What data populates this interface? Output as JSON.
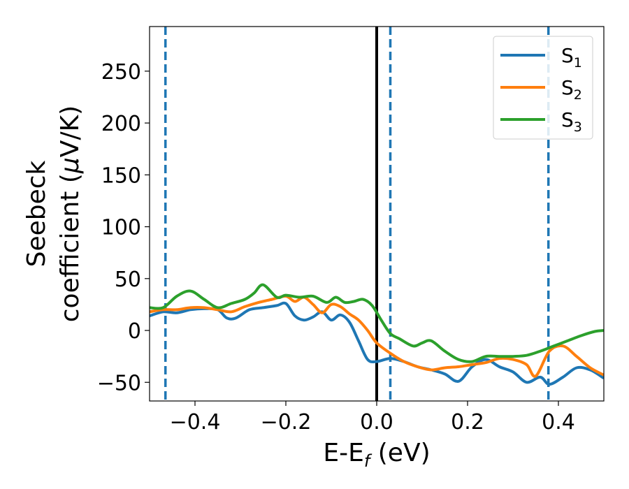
{
  "chart_data": {
    "type": "line",
    "xlabel": {
      "base": "E-E",
      "sub": "f",
      "tail": " (eV)"
    },
    "ylabel": {
      "line1": "Seebeck",
      "line2_pre": "coefficient  (",
      "line2_mu": "μ",
      "line2_post": "V/K)"
    },
    "xlim": [
      -0.5,
      0.5
    ],
    "ylim": [
      -68,
      293
    ],
    "x_ticks": [
      -0.4,
      -0.2,
      0.0,
      0.2,
      0.4
    ],
    "x_tick_labels": [
      "−0.4",
      "−0.2",
      "0.0",
      "0.2",
      "0.4"
    ],
    "y_ticks": [
      -50,
      0,
      50,
      100,
      150,
      200,
      250
    ],
    "y_tick_labels": [
      "−50",
      "0",
      "50",
      "100",
      "150",
      "200",
      "250"
    ],
    "grid": false,
    "legend_position": "top-right",
    "reference_lines": [
      {
        "x": -0.465,
        "style": "dashed",
        "color": "#1f77b4"
      },
      {
        "x": 0.0,
        "style": "solid",
        "color": "#000000"
      },
      {
        "x": 0.03,
        "style": "dashed",
        "color": "#1f77b4"
      },
      {
        "x": 0.378,
        "style": "dashed",
        "color": "#1f77b4"
      }
    ],
    "series": [
      {
        "name": "S",
        "sub": "1",
        "color": "#1f77b4",
        "x": [
          -0.5,
          -0.47,
          -0.44,
          -0.41,
          -0.38,
          -0.35,
          -0.33,
          -0.31,
          -0.28,
          -0.25,
          -0.22,
          -0.2,
          -0.18,
          -0.16,
          -0.14,
          -0.12,
          -0.1,
          -0.08,
          -0.06,
          -0.04,
          -0.02,
          0.0,
          0.03,
          0.06,
          0.09,
          0.12,
          0.15,
          0.18,
          0.21,
          0.24,
          0.27,
          0.3,
          0.33,
          0.36,
          0.38,
          0.41,
          0.44,
          0.47,
          0.5
        ],
        "y": [
          14,
          18,
          17,
          20,
          21,
          20,
          12,
          12,
          20,
          22,
          24,
          26,
          14,
          10,
          13,
          18,
          10,
          15,
          8,
          -10,
          -28,
          -30,
          -27,
          -30,
          -35,
          -38,
          -42,
          -49,
          -35,
          -28,
          -35,
          -40,
          -50,
          -45,
          -52,
          -45,
          -36,
          -38,
          -46
        ]
      },
      {
        "name": "S",
        "sub": "2",
        "color": "#ff7f0e",
        "x": [
          -0.5,
          -0.47,
          -0.44,
          -0.41,
          -0.38,
          -0.35,
          -0.32,
          -0.29,
          -0.26,
          -0.23,
          -0.2,
          -0.18,
          -0.16,
          -0.14,
          -0.12,
          -0.1,
          -0.08,
          -0.06,
          -0.04,
          -0.02,
          0.0,
          0.03,
          0.06,
          0.09,
          0.12,
          0.15,
          0.18,
          0.21,
          0.24,
          0.27,
          0.3,
          0.33,
          0.35,
          0.38,
          0.41,
          0.44,
          0.47,
          0.5
        ],
        "y": [
          18,
          20,
          20,
          22,
          22,
          20,
          18,
          23,
          27,
          30,
          33,
          28,
          32,
          25,
          17,
          25,
          23,
          16,
          10,
          0,
          -12,
          -22,
          -30,
          -35,
          -38,
          -36,
          -35,
          -33,
          -31,
          -27,
          -28,
          -33,
          -44,
          -20,
          -15,
          -25,
          -36,
          -43
        ]
      },
      {
        "name": "S",
        "sub": "3",
        "color": "#2ca02c",
        "x": [
          -0.5,
          -0.47,
          -0.44,
          -0.41,
          -0.38,
          -0.35,
          -0.32,
          -0.29,
          -0.27,
          -0.25,
          -0.22,
          -0.2,
          -0.17,
          -0.14,
          -0.11,
          -0.09,
          -0.07,
          -0.05,
          -0.03,
          -0.01,
          0.01,
          0.03,
          0.05,
          0.08,
          0.1,
          0.12,
          0.15,
          0.18,
          0.21,
          0.24,
          0.27,
          0.3,
          0.33,
          0.36,
          0.39,
          0.42,
          0.45,
          0.48,
          0.5
        ],
        "y": [
          22,
          22,
          33,
          38,
          30,
          22,
          26,
          30,
          36,
          44,
          32,
          34,
          32,
          33,
          27,
          32,
          27,
          28,
          30,
          24,
          10,
          -3,
          -8,
          -15,
          -12,
          -10,
          -20,
          -28,
          -30,
          -25,
          -25,
          -25,
          -24,
          -20,
          -15,
          -10,
          -5,
          -1,
          0
        ]
      }
    ]
  }
}
